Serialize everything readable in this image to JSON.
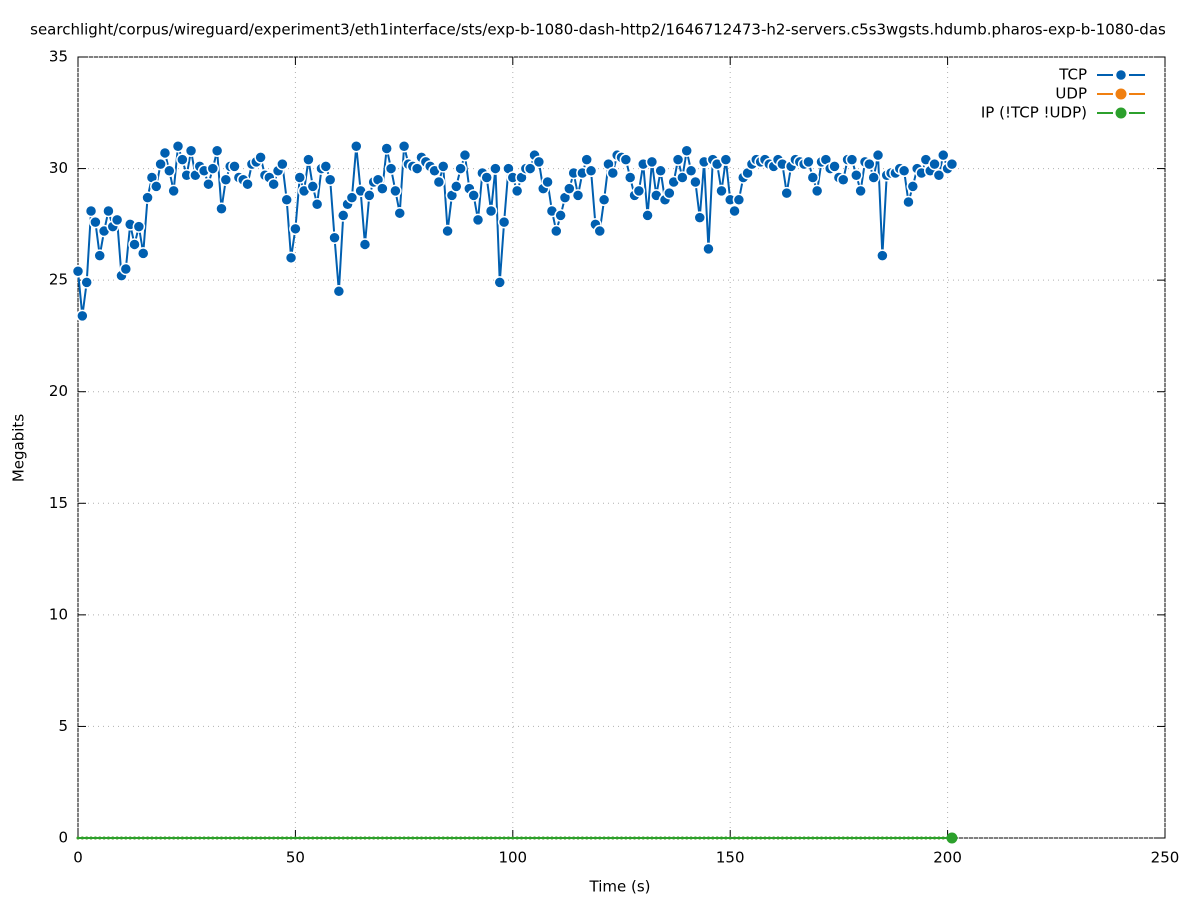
{
  "chart_data": {
    "type": "line",
    "title": "searchlight/corpus/wireguard/experiment3/eth1interface/sts/exp-b-1080-dash-http2/1646712473-h2-servers.c5s3wgsts.hdumb.pharos-exp-b-1080-das",
    "x_label": "Time (s)",
    "y_label": "Megabits",
    "xlim": [
      0,
      250
    ],
    "xticks": [
      0,
      50,
      100,
      150,
      200,
      250
    ],
    "ylim": [
      0,
      35
    ],
    "yticks": [
      0,
      5,
      10,
      15,
      20,
      25,
      30,
      35
    ],
    "grid": true,
    "legend": "top-right",
    "x": [
      0,
      1,
      2,
      3,
      4,
      5,
      6,
      7,
      8,
      9,
      10,
      11,
      12,
      13,
      14,
      15,
      16,
      17,
      18,
      19,
      20,
      21,
      22,
      23,
      24,
      25,
      26,
      27,
      28,
      29,
      30,
      31,
      32,
      33,
      34,
      35,
      36,
      37,
      38,
      39,
      40,
      41,
      42,
      43,
      44,
      45,
      46,
      47,
      48,
      49,
      50,
      51,
      52,
      53,
      54,
      55,
      56,
      57,
      58,
      59,
      60,
      61,
      62,
      63,
      64,
      65,
      66,
      67,
      68,
      69,
      70,
      71,
      72,
      73,
      74,
      75,
      76,
      77,
      78,
      79,
      80,
      81,
      82,
      83,
      84,
      85,
      86,
      87,
      88,
      89,
      90,
      91,
      92,
      93,
      94,
      95,
      96,
      97,
      98,
      99,
      100,
      101,
      102,
      103,
      104,
      105,
      106,
      107,
      108,
      109,
      110,
      111,
      112,
      113,
      114,
      115,
      116,
      117,
      118,
      119,
      120,
      121,
      122,
      123,
      124,
      125,
      126,
      127,
      128,
      129,
      130,
      131,
      132,
      133,
      134,
      135,
      136,
      137,
      138,
      139,
      140,
      141,
      142,
      143,
      144,
      145,
      146,
      147,
      148,
      149,
      150,
      151,
      152,
      153,
      154,
      155,
      156,
      157,
      158,
      159,
      160,
      161,
      162,
      163,
      164,
      165,
      166,
      167,
      168,
      169,
      170,
      171,
      172,
      173,
      174,
      175,
      176,
      177,
      178,
      179,
      180,
      181,
      182,
      183,
      184,
      185,
      186,
      187,
      188,
      189,
      190,
      191,
      192,
      193,
      194,
      195,
      196,
      197,
      198,
      199,
      200,
      201
    ],
    "series": [
      {
        "name": "TCP",
        "color": "#005fb0",
        "values": [
          25.4,
          23.4,
          24.9,
          28.1,
          27.6,
          26.1,
          27.2,
          28.1,
          27.4,
          27.7,
          25.2,
          25.5,
          27.5,
          26.6,
          27.4,
          26.2,
          28.7,
          29.6,
          29.2,
          30.2,
          30.7,
          29.9,
          29.0,
          31.0,
          30.4,
          29.7,
          30.8,
          29.7,
          30.1,
          29.9,
          29.3,
          30.0,
          30.8,
          28.2,
          29.5,
          30.1,
          30.1,
          29.6,
          29.5,
          29.3,
          30.2,
          30.3,
          30.5,
          29.7,
          29.6,
          29.3,
          29.9,
          30.2,
          28.6,
          26.0,
          27.3,
          29.6,
          29.0,
          30.4,
          29.2,
          28.4,
          30.0,
          30.1,
          29.5,
          26.9,
          24.5,
          27.9,
          28.4,
          28.7,
          31.0,
          29.0,
          26.6,
          28.8,
          29.4,
          29.5,
          29.1,
          30.9,
          30.0,
          29.0,
          28.0,
          31.0,
          30.2,
          30.1,
          30.0,
          30.5,
          30.3,
          30.1,
          29.9,
          29.4,
          30.1,
          27.2,
          28.8,
          29.2,
          30.0,
          30.6,
          29.1,
          28.8,
          27.7,
          29.8,
          29.6,
          28.1,
          30.0,
          24.9,
          27.6,
          30.0,
          29.6,
          29.0,
          29.6,
          30.0,
          30.0,
          30.6,
          30.3,
          29.1,
          29.4,
          28.1,
          27.2,
          27.9,
          28.7,
          29.1,
          29.8,
          28.8,
          29.8,
          30.4,
          29.9,
          27.5,
          27.2,
          28.6,
          30.2,
          29.8,
          30.6,
          30.5,
          30.4,
          29.6,
          28.8,
          29.0,
          30.2,
          27.9,
          30.3,
          28.8,
          29.9,
          28.6,
          28.9,
          29.4,
          30.4,
          29.6,
          30.8,
          29.9,
          29.4,
          27.8,
          30.3,
          26.4,
          30.4,
          30.2,
          29.0,
          30.4,
          28.6,
          28.1,
          28.6,
          29.6,
          29.8,
          30.2,
          30.4,
          30.3,
          30.4,
          30.2,
          30.1,
          30.4,
          30.2,
          28.9,
          30.1,
          30.4,
          30.3,
          30.2,
          30.3,
          29.6,
          29.0,
          30.3,
          30.4,
          30.0,
          30.1,
          29.6,
          29.5,
          30.4,
          30.4,
          29.7,
          29.0,
          30.3,
          30.2,
          29.6,
          30.6,
          26.1,
          29.7,
          29.8,
          29.8,
          30.0,
          29.9,
          28.5,
          29.2,
          30.0,
          29.8,
          30.4,
          29.9,
          30.2,
          29.7,
          30.6,
          30.0,
          30.2
        ]
      },
      {
        "name": "UDP",
        "color": "#f07f10",
        "values": [
          0,
          0,
          0,
          0,
          0,
          0,
          0,
          0,
          0,
          0,
          0,
          0,
          0,
          0,
          0,
          0,
          0,
          0,
          0,
          0,
          0,
          0,
          0,
          0,
          0,
          0,
          0,
          0,
          0,
          0,
          0,
          0,
          0,
          0,
          0,
          0,
          0,
          0,
          0,
          0,
          0,
          0,
          0,
          0,
          0,
          0,
          0,
          0,
          0,
          0,
          0,
          0,
          0,
          0,
          0,
          0,
          0,
          0,
          0,
          0,
          0,
          0,
          0,
          0,
          0,
          0,
          0,
          0,
          0,
          0,
          0,
          0,
          0,
          0,
          0,
          0,
          0,
          0,
          0,
          0,
          0,
          0,
          0,
          0,
          0,
          0,
          0,
          0,
          0,
          0,
          0,
          0,
          0,
          0,
          0,
          0,
          0,
          0,
          0,
          0,
          0,
          0,
          0,
          0,
          0,
          0,
          0,
          0,
          0,
          0,
          0,
          0,
          0,
          0,
          0,
          0,
          0,
          0,
          0,
          0,
          0,
          0,
          0,
          0,
          0,
          0,
          0,
          0,
          0,
          0,
          0,
          0,
          0,
          0,
          0,
          0,
          0,
          0,
          0,
          0,
          0,
          0,
          0,
          0,
          0,
          0,
          0,
          0,
          0,
          0,
          0,
          0,
          0,
          0,
          0,
          0,
          0,
          0,
          0,
          0,
          0,
          0,
          0,
          0,
          0,
          0,
          0,
          0,
          0,
          0,
          0,
          0,
          0,
          0,
          0,
          0,
          0,
          0,
          0,
          0,
          0,
          0,
          0,
          0,
          0,
          0,
          0,
          0,
          0,
          0,
          0,
          0,
          0,
          0,
          0,
          0,
          0,
          0,
          0,
          0,
          0,
          0
        ]
      },
      {
        "name": "IP (!TCP  !UDP)",
        "color": "#2ca02c",
        "values": [
          0,
          0,
          0,
          0,
          0,
          0,
          0,
          0,
          0,
          0,
          0,
          0,
          0,
          0,
          0,
          0,
          0,
          0,
          0,
          0,
          0,
          0,
          0,
          0,
          0,
          0,
          0,
          0,
          0,
          0,
          0,
          0,
          0,
          0,
          0,
          0,
          0,
          0,
          0,
          0,
          0,
          0,
          0,
          0,
          0,
          0,
          0,
          0,
          0,
          0,
          0,
          0,
          0,
          0,
          0,
          0,
          0,
          0,
          0,
          0,
          0,
          0,
          0,
          0,
          0,
          0,
          0,
          0,
          0,
          0,
          0,
          0,
          0,
          0,
          0,
          0,
          0,
          0,
          0,
          0,
          0,
          0,
          0,
          0,
          0,
          0,
          0,
          0,
          0,
          0,
          0,
          0,
          0,
          0,
          0,
          0,
          0,
          0,
          0,
          0,
          0,
          0,
          0,
          0,
          0,
          0,
          0,
          0,
          0,
          0,
          0,
          0,
          0,
          0,
          0,
          0,
          0,
          0,
          0,
          0,
          0,
          0,
          0,
          0,
          0,
          0,
          0,
          0,
          0,
          0,
          0,
          0,
          0,
          0,
          0,
          0,
          0,
          0,
          0,
          0,
          0,
          0,
          0,
          0,
          0,
          0,
          0,
          0,
          0,
          0,
          0,
          0,
          0,
          0,
          0,
          0,
          0,
          0,
          0,
          0,
          0,
          0,
          0,
          0,
          0,
          0,
          0,
          0,
          0,
          0,
          0,
          0,
          0,
          0,
          0,
          0,
          0,
          0,
          0,
          0,
          0,
          0,
          0,
          0,
          0,
          0,
          0,
          0,
          0,
          0,
          0,
          0,
          0,
          0,
          0,
          0,
          0,
          0,
          0,
          0,
          0,
          0
        ]
      }
    ]
  }
}
